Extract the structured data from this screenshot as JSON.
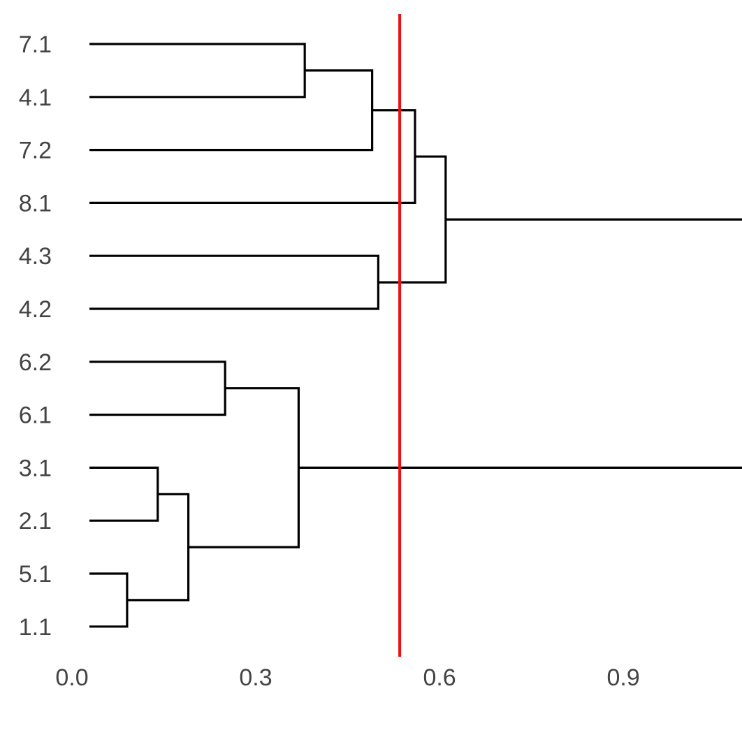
{
  "chart_data": {
    "type": "dendrogram",
    "orientation": "horizontal",
    "title": "",
    "xlabel": "",
    "ylabel": "",
    "xlim": [
      0,
      1.12
    ],
    "x_ticks": [
      {
        "value": 0.0,
        "label": "0.0"
      },
      {
        "value": 0.3,
        "label": "0.3"
      },
      {
        "value": 0.6,
        "label": "0.6"
      },
      {
        "value": 0.9,
        "label": "0.9"
      }
    ],
    "leaves": [
      "7.1",
      "4.1",
      "7.2",
      "8.1",
      "4.3",
      "4.2",
      "6.2",
      "6.1",
      "3.1",
      "2.1",
      "5.1",
      "1.1"
    ],
    "merges": [
      {
        "id": "m1",
        "left": "5.1",
        "right": "1.1",
        "height": 0.09
      },
      {
        "id": "m2",
        "left": "3.1",
        "right": "2.1",
        "height": 0.14
      },
      {
        "id": "m3",
        "left": "m2",
        "right": "m1",
        "height": 0.19
      },
      {
        "id": "m4",
        "left": "6.2",
        "right": "6.1",
        "height": 0.25
      },
      {
        "id": "m5",
        "left": "m4",
        "right": "m3",
        "height": 0.37
      },
      {
        "id": "m6",
        "left": "7.1",
        "right": "4.1",
        "height": 0.38
      },
      {
        "id": "m7",
        "left": "m6",
        "right": "7.2",
        "height": 0.49
      },
      {
        "id": "m8",
        "left": "4.3",
        "right": "4.2",
        "height": 0.5
      },
      {
        "id": "m9",
        "left": "m7",
        "right": "8.1",
        "height": 0.56
      },
      {
        "id": "m10",
        "left": "m9",
        "right": "m8",
        "height": 0.61
      },
      {
        "id": "m11",
        "left": "m10",
        "right": "m5",
        "height": 1.1
      }
    ],
    "cut_line": {
      "value": 0.535,
      "color": "#ee1111"
    },
    "link_color": "#000000",
    "label_color": "#444444",
    "grid": false,
    "legend": "none"
  }
}
